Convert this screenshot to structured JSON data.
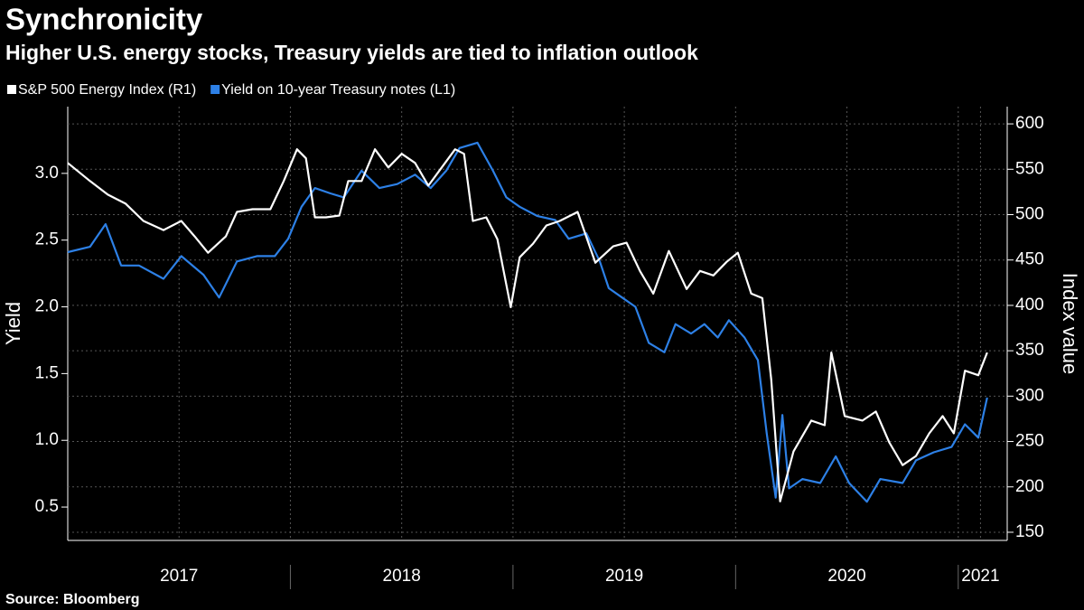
{
  "chart_data": {
    "type": "line",
    "title": "Synchronicity",
    "subtitle": "Higher U.S. energy stocks, Treasury yields are tied to inflation outlook",
    "source": "Source: Bloomberg",
    "ylabel": "Yield",
    "y2label": "Index value",
    "xlim": [
      2017,
      2021.22
    ],
    "xticks": [
      {
        "value": 2017.5,
        "label": "2017"
      },
      {
        "value": 2018.5,
        "label": "2018"
      },
      {
        "value": 2019.5,
        "label": "2019"
      },
      {
        "value": 2020.5,
        "label": "2020"
      },
      {
        "value": 2021.1,
        "label": "2021"
      }
    ],
    "ylim": [
      0.25,
      3.5
    ],
    "yticks": [
      0.5,
      {
        "value": 1,
        "label": "1.0"
      },
      1.5,
      {
        "value": 2,
        "label": "2.0"
      },
      2.5,
      {
        "value": 3,
        "label": "3.0"
      }
    ],
    "y2lim": [
      141,
      619
    ],
    "y2ticks": [
      150,
      200,
      250,
      300,
      350,
      400,
      450,
      500,
      550,
      600
    ],
    "grid": true,
    "series": [
      {
        "name": "S&P 500 Energy Index (R1)",
        "color": "#ffffff",
        "axis": "y2",
        "x": [
          2017.0,
          2017.1,
          2017.18,
          2017.26,
          2017.34,
          2017.43,
          2017.51,
          2017.57,
          2017.63,
          2017.71,
          2017.76,
          2017.83,
          2017.91,
          2017.97,
          2018.03,
          2018.07,
          2018.11,
          2018.16,
          2018.22,
          2018.26,
          2018.32,
          2018.38,
          2018.44,
          2018.5,
          2018.56,
          2018.62,
          2018.68,
          2018.74,
          2018.78,
          2018.82,
          2018.88,
          2018.93,
          2018.99,
          2019.03,
          2019.09,
          2019.15,
          2019.21,
          2019.29,
          2019.37,
          2019.45,
          2019.51,
          2019.57,
          2019.63,
          2019.7,
          2019.78,
          2019.84,
          2019.9,
          2019.96,
          2020.01,
          2020.07,
          2020.12,
          2020.16,
          2020.2,
          2020.26,
          2020.34,
          2020.4,
          2020.43,
          2020.49,
          2020.57,
          2020.63,
          2020.69,
          2020.75,
          2020.81,
          2020.87,
          2020.93,
          2020.98,
          2021.03,
          2021.09,
          2021.13
        ],
        "values": [
          557,
          537,
          522,
          512,
          493,
          483,
          493,
          476,
          458,
          476,
          503,
          506,
          506,
          537,
          572,
          562,
          497,
          497,
          499,
          537,
          537,
          572,
          552,
          567,
          557,
          532,
          552,
          572,
          567,
          493,
          497,
          473,
          398,
          453,
          468,
          488,
          493,
          503,
          447,
          465,
          469,
          438,
          413,
          460,
          418,
          438,
          433,
          448,
          458,
          413,
          408,
          318,
          184,
          239,
          273,
          268,
          348,
          278,
          273,
          283,
          249,
          224,
          234,
          259,
          278,
          259,
          328,
          323,
          348
        ]
      },
      {
        "name": "Yield on 10-year Treasury notes (L1)",
        "color": "#2d80e6",
        "axis": "y",
        "x": [
          2017.0,
          2017.1,
          2017.17,
          2017.24,
          2017.32,
          2017.43,
          2017.51,
          2017.61,
          2017.68,
          2017.76,
          2017.85,
          2017.93,
          2017.99,
          2018.05,
          2018.11,
          2018.18,
          2018.24,
          2018.32,
          2018.4,
          2018.48,
          2018.56,
          2018.63,
          2018.7,
          2018.76,
          2018.84,
          2018.91,
          2018.97,
          2019.03,
          2019.11,
          2019.19,
          2019.25,
          2019.33,
          2019.39,
          2019.43,
          2019.49,
          2019.55,
          2019.61,
          2019.68,
          2019.73,
          2019.8,
          2019.86,
          2019.92,
          2019.97,
          2020.04,
          2020.1,
          2020.14,
          2020.18,
          2020.21,
          2020.24,
          2020.3,
          2020.38,
          2020.45,
          2020.51,
          2020.59,
          2020.65,
          2020.75,
          2020.81,
          2020.89,
          2020.97,
          2021.03,
          2021.09,
          2021.13
        ],
        "values": [
          2.41,
          2.45,
          2.62,
          2.31,
          2.31,
          2.21,
          2.38,
          2.24,
          2.07,
          2.34,
          2.38,
          2.38,
          2.51,
          2.75,
          2.89,
          2.85,
          2.82,
          3.02,
          2.89,
          2.92,
          2.99,
          2.89,
          3.02,
          3.19,
          3.23,
          3.02,
          2.82,
          2.75,
          2.68,
          2.65,
          2.51,
          2.55,
          2.34,
          2.14,
          2.07,
          2.0,
          1.73,
          1.66,
          1.87,
          1.8,
          1.87,
          1.77,
          1.9,
          1.77,
          1.6,
          1.05,
          0.57,
          1.19,
          0.64,
          0.71,
          0.68,
          0.88,
          0.68,
          0.54,
          0.71,
          0.68,
          0.85,
          0.91,
          0.95,
          1.12,
          1.02,
          1.32
        ]
      }
    ]
  }
}
